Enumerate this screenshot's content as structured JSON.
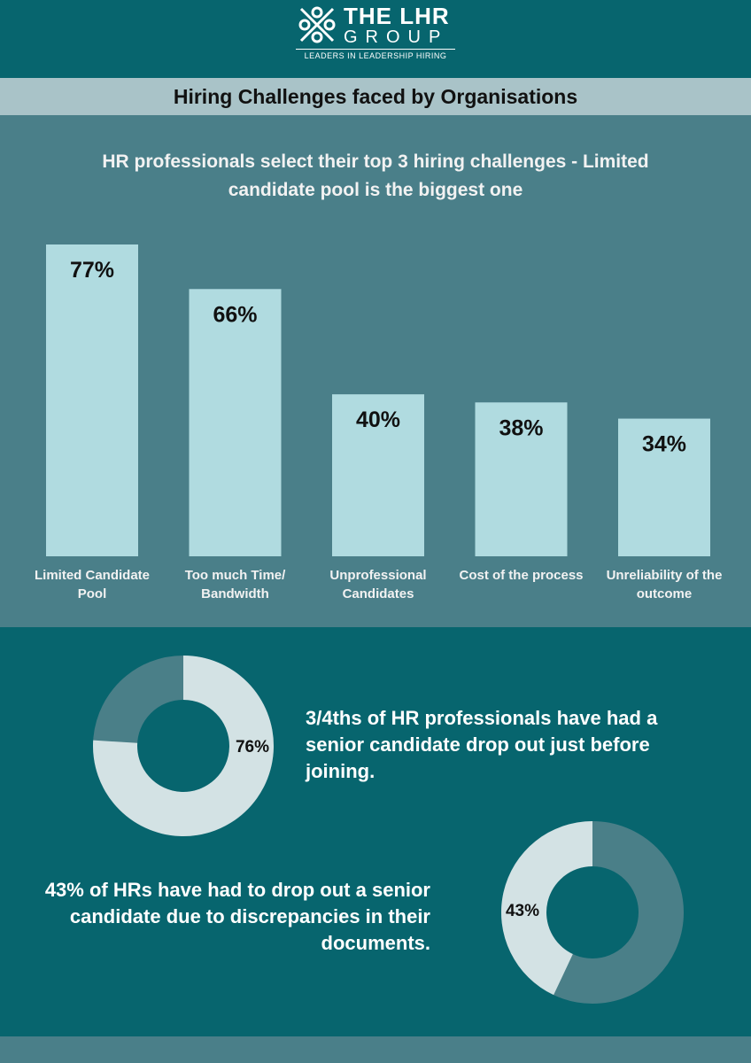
{
  "header": {
    "logo_title": "THE LHR",
    "logo_subtitle": "GROUP",
    "tagline": "LEADERS IN LEADERSHIP HIRING",
    "banner": "Hiring Challenges faced by Organisations"
  },
  "chart_data": [
    {
      "type": "bar",
      "title": "HR professionals select their top 3 hiring challenges - Limited candidate pool is the biggest one",
      "categories": [
        "Limited Candidate Pool",
        "Too much Time/ Bandwidth",
        "Unprofessional Candidates",
        "Cost of the process",
        "Unreliability of the outcome"
      ],
      "values": [
        77,
        66,
        40,
        38,
        34
      ],
      "value_labels": [
        "77%",
        "66%",
        "40%",
        "38%",
        "34%"
      ],
      "color": "#b0dbe0"
    },
    {
      "type": "donut",
      "values": [
        76
      ],
      "value_labels": [
        "76%"
      ],
      "color": "#d3e2e4",
      "track_color": "#4a7f88",
      "annotation": "3/4ths of HR professionals have had a senior candidate drop out just before joining."
    },
    {
      "type": "donut",
      "values": [
        43
      ],
      "value_labels": [
        "43%"
      ],
      "color": "#d3e2e4",
      "track_color": "#4a7f88",
      "annotation": "43% of HRs have had to drop out a senior candidate due to discrepancies in their documents."
    }
  ]
}
